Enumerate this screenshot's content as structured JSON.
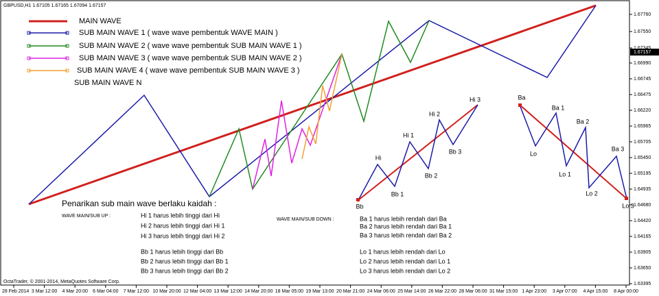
{
  "header": {
    "symbol": "GBPUSD,H1  1.67105 1.67165 1.67094 1.67157"
  },
  "price_axis": {
    "labels": [
      "1.67760",
      "1.67550",
      "1.67345",
      "1.66990",
      "1.66745",
      "1.66475",
      "1.66220",
      "1.65965",
      "1.65705",
      "1.65450",
      "1.65195",
      "1.64935",
      "1.64680",
      "1.64420",
      "1.64165",
      "1.63905",
      "1.63650",
      "1.63395"
    ],
    "current": "1.67157"
  },
  "time_axis": {
    "labels": [
      "28 Feb 2014",
      "3 Mar 12:00",
      "4 Mar 20:00",
      "6 Mar 04:00",
      "7 Mar 12:00",
      "10 Mar 20:00",
      "12 Mar 04:00",
      "13 Mar 12:00",
      "14 Mar 20:00",
      "18 Mar 05:00",
      "19 Mar 13:00",
      "20 Mar 21:00",
      "24 Mar 06:00",
      "25 Mar 14:00",
      "26 Mar 22:00",
      "28 Mar 06:00",
      "31 Mar 15:00",
      "1 Apr 23:00",
      "3 Apr 07:00",
      "4 Apr 15:00",
      "8 Apr 00:00"
    ]
  },
  "legend": [
    "MAIN WAVE",
    "SUB MAIN WAVE 1  ( wave wave pembentuk WAVE MAIN )",
    "SUB MAIN WAVE 2  ( wave wave pembentuk SUB MAIN WAVE 1 )",
    "SUB MAIN WAVE 3  ( wave wave pembentuk SUB MAIN WAVE 2 )",
    "SUB MAIN WAVE 4   ( wave wave pembentuk SUB MAIN WAVE 3 )",
    "SUB MAIN WAVE N"
  ],
  "points_up": [
    "Bb",
    "Hi",
    "Bb 1",
    "Hi 1",
    "Bb 2",
    "Hi 2",
    "Bb 3",
    "Hi 3"
  ],
  "points_down": [
    "Ba",
    "Lo",
    "Ba 1",
    "Lo 1",
    "Ba 2",
    "Lo 2",
    "Ba 3",
    "Lo 3"
  ],
  "notes": {
    "title": "Penarikan sub main wave berlaku kaidah :",
    "up_label": "WAVE MAIN/SUB UP :",
    "down_label": "WAVE MAIN/SUB DOWN :",
    "up_rules": [
      "Hi 1 harus lebih tinggi dari Hi",
      "Hi 2 harus lebih tinggi dari Hi 1",
      "Hi 3 harus lebih tinggi dari Hi 2",
      "Bb 1 harus lebih tinggi dari Bb",
      "Bb 2 harus lebih tinggi dari Bb 1",
      "Bb 3 harus lebih tinggi dari Bb 2"
    ],
    "down_rules": [
      "Ba 1 harus lebih rendah dari Ba",
      "Ba 2  harus lebih rendah dari Ba 1",
      "Ba 3  harus lebih rendah dari Ba 2",
      "Lo 1 harus lebih rendah dari Lo",
      "Lo 2 harus lebih rendah dari Lo 1",
      "Lo 3 harus lebih rendah dari Lo 2"
    ]
  },
  "footer": "OctaTrader, © 2001-2014, MetaQuotes Software Corp."
}
